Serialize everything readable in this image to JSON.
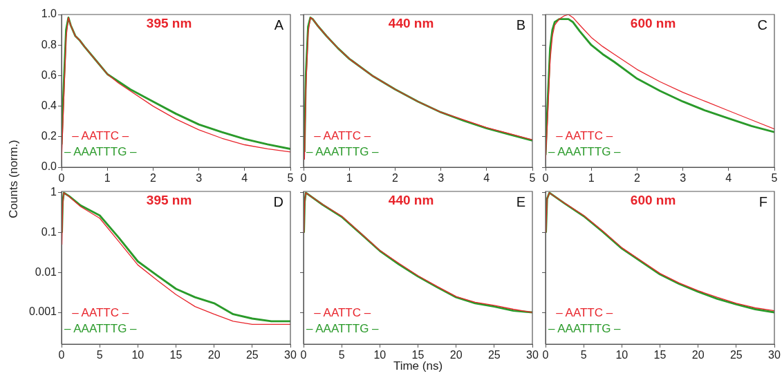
{
  "chart_data": [
    {
      "type": "line",
      "title": "395 nm",
      "ylabel": "Counts (norm.)",
      "annotations": [
        "A"
      ],
      "legend": "bottom left",
      "xlim": [
        0,
        5
      ],
      "xticks": [
        0,
        1,
        2,
        3,
        4,
        5
      ],
      "ylim": [
        0,
        1
      ],
      "yticks": [
        {
          "value": 0,
          "label": "0.0"
        },
        {
          "value": 0.2,
          "label": "0.2"
        },
        {
          "value": 0.4,
          "label": "0.4"
        },
        {
          "value": 0.6,
          "label": "0.6"
        },
        {
          "value": 0.8,
          "label": "0.8"
        },
        {
          "value": 1,
          "label": "1.0"
        }
      ],
      "x": [
        0,
        0.05,
        0.1,
        0.15,
        0.2,
        0.3,
        0.4,
        0.5,
        0.75,
        1,
        1.25,
        1.5,
        2,
        2.5,
        3,
        3.5,
        4,
        4.5,
        5
      ],
      "series": [
        {
          "name": "– AATTC –",
          "color": "#e8242b",
          "values": [
            0.05,
            0.45,
            0.85,
            0.98,
            0.93,
            0.86,
            0.83,
            0.79,
            0.7,
            0.61,
            0.55,
            0.5,
            0.4,
            0.315,
            0.245,
            0.19,
            0.147,
            0.12,
            0.1
          ]
        },
        {
          "name": "– AAATTTG –",
          "color": "#2a9a2a",
          "values": [
            0.15,
            0.55,
            0.9,
            0.98,
            0.93,
            0.86,
            0.83,
            0.79,
            0.7,
            0.61,
            0.56,
            0.51,
            0.43,
            0.35,
            0.28,
            0.23,
            0.185,
            0.15,
            0.12
          ]
        }
      ]
    },
    {
      "type": "line",
      "title": "440 nm",
      "annotations": [
        "B"
      ],
      "legend": "bottom left",
      "tick_labels": "x",
      "xlim": [
        0,
        5
      ],
      "xticks": [
        0,
        1,
        2,
        3,
        4,
        5
      ],
      "ylim": [
        0,
        1
      ],
      "yticks": [
        0,
        0.2,
        0.4,
        0.6,
        0.8,
        1
      ],
      "x": [
        0.02,
        0.05,
        0.1,
        0.15,
        0.2,
        0.3,
        0.5,
        0.75,
        1,
        1.5,
        2,
        2.5,
        3,
        3.5,
        4,
        4.5,
        5
      ],
      "series": [
        {
          "name": "– AATTC –",
          "color": "#e8242b",
          "values": [
            0.05,
            0.5,
            0.88,
            0.98,
            0.97,
            0.93,
            0.86,
            0.78,
            0.71,
            0.6,
            0.51,
            0.43,
            0.36,
            0.31,
            0.26,
            0.22,
            0.18
          ]
        },
        {
          "name": "– AAATTTG –",
          "color": "#2a9a2a",
          "values": [
            0.1,
            0.6,
            0.92,
            0.98,
            0.97,
            0.93,
            0.86,
            0.78,
            0.71,
            0.6,
            0.51,
            0.43,
            0.36,
            0.305,
            0.255,
            0.215,
            0.175
          ]
        }
      ]
    },
    {
      "type": "line",
      "title": "600 nm",
      "annotations": [
        "C"
      ],
      "legend": "bottom left",
      "tick_labels": "x",
      "xlim": [
        0,
        5
      ],
      "xticks": [
        0,
        1,
        2,
        3,
        4,
        5
      ],
      "ylim": [
        0,
        1
      ],
      "yticks": [
        0,
        0.2,
        0.4,
        0.6,
        0.8,
        1
      ],
      "x": [
        0,
        0.05,
        0.1,
        0.15,
        0.2,
        0.3,
        0.4,
        0.5,
        0.6,
        0.75,
        1,
        1.25,
        1.5,
        2,
        2.5,
        3,
        3.5,
        4,
        4.5,
        5
      ],
      "series": [
        {
          "name": "– AATTC –",
          "color": "#e8242b",
          "values": [
            0.05,
            0.35,
            0.7,
            0.86,
            0.93,
            0.97,
            0.99,
            1.0,
            0.98,
            0.93,
            0.85,
            0.79,
            0.74,
            0.64,
            0.56,
            0.49,
            0.43,
            0.37,
            0.31,
            0.25
          ]
        },
        {
          "name": "– AAATTTG –",
          "color": "#2a9a2a",
          "values": [
            0.08,
            0.45,
            0.78,
            0.9,
            0.95,
            0.97,
            0.97,
            0.97,
            0.95,
            0.89,
            0.8,
            0.74,
            0.69,
            0.58,
            0.5,
            0.43,
            0.37,
            0.32,
            0.27,
            0.23
          ]
        }
      ]
    },
    {
      "type": "line",
      "title": "395 nm",
      "annotations": [
        "D"
      ],
      "legend": "bottom left",
      "log": "y",
      "xlim": [
        0,
        30
      ],
      "xticks": [
        0,
        5,
        10,
        15,
        20,
        25,
        30
      ],
      "ylim": [
        0.00016,
        1.08
      ],
      "yticks": [
        0.001,
        0.01,
        0.1,
        1
      ],
      "x": [
        0.05,
        0.15,
        0.3,
        1,
        2.5,
        5,
        7.5,
        10,
        12.5,
        15,
        17.5,
        20,
        22.5,
        25,
        27.5,
        30
      ],
      "series": [
        {
          "name": "– AATTC –",
          "color": "#e8242b",
          "values": [
            0.05,
            0.5,
            1,
            0.8,
            0.45,
            0.23,
            0.06,
            0.0155,
            0.0065,
            0.0028,
            0.0014,
            0.0009,
            0.0006,
            0.0005,
            0.0005,
            0.0005
          ]
        },
        {
          "name": "– AAATTTG –",
          "color": "#2a9a2a",
          "values": [
            0.1,
            0.6,
            1,
            0.82,
            0.48,
            0.27,
            0.075,
            0.019,
            0.0085,
            0.0039,
            0.0024,
            0.0017,
            0.0009,
            0.0007,
            0.0006,
            0.0006
          ]
        }
      ]
    },
    {
      "type": "line",
      "title": "440 nm",
      "xlabel": "Time (ns)",
      "annotations": [
        "E"
      ],
      "legend": "bottom left",
      "log": "y",
      "tick_labels": "x",
      "xlim": [
        0,
        30
      ],
      "xticks": [
        0,
        5,
        10,
        15,
        20,
        25,
        30
      ],
      "ylim": [
        0.00016,
        1.08
      ],
      "yticks": [
        0.001,
        0.01,
        0.1,
        1
      ],
      "x": [
        0.05,
        0.15,
        0.3,
        2.5,
        5,
        7.5,
        10,
        12.5,
        15,
        17.5,
        20,
        22.5,
        25,
        27.5,
        30
      ],
      "series": [
        {
          "name": "– AATTC –",
          "color": "#e8242b",
          "values": [
            0.1,
            0.6,
            1,
            0.51,
            0.26,
            0.097,
            0.036,
            0.017,
            0.0083,
            0.0045,
            0.0025,
            0.0018,
            0.0015,
            0.0012,
            0.001
          ]
        },
        {
          "name": "– AAATTTG –",
          "color": "#2a9a2a",
          "values": [
            0.1,
            0.6,
            1,
            0.5,
            0.25,
            0.094,
            0.035,
            0.016,
            0.008,
            0.0043,
            0.0024,
            0.0017,
            0.0014,
            0.0011,
            0.001
          ]
        }
      ]
    },
    {
      "type": "line",
      "title": "600 nm",
      "annotations": [
        "F"
      ],
      "legend": "bottom left",
      "log": "y",
      "tick_labels": "x",
      "xlim": [
        0,
        30
      ],
      "xticks": [
        0,
        5,
        10,
        15,
        20,
        25,
        30
      ],
      "ylim": [
        0.00016,
        1.08
      ],
      "yticks": [
        0.001,
        0.01,
        0.1,
        1
      ],
      "x": [
        0.05,
        0.2,
        0.5,
        2.5,
        5,
        7.5,
        10,
        12.5,
        15,
        17.5,
        20,
        22.5,
        25,
        27.5,
        30
      ],
      "series": [
        {
          "name": "– AATTC –",
          "color": "#e8242b",
          "values": [
            0.1,
            0.7,
            1,
            0.55,
            0.27,
            0.11,
            0.042,
            0.02,
            0.0095,
            0.0055,
            0.0035,
            0.0024,
            0.0017,
            0.0013,
            0.0011
          ]
        },
        {
          "name": "– AAATTTG –",
          "color": "#2a9a2a",
          "values": [
            0.1,
            0.7,
            1,
            0.54,
            0.26,
            0.105,
            0.04,
            0.019,
            0.009,
            0.0052,
            0.0033,
            0.0022,
            0.0016,
            0.0012,
            0.001
          ]
        }
      ]
    }
  ]
}
